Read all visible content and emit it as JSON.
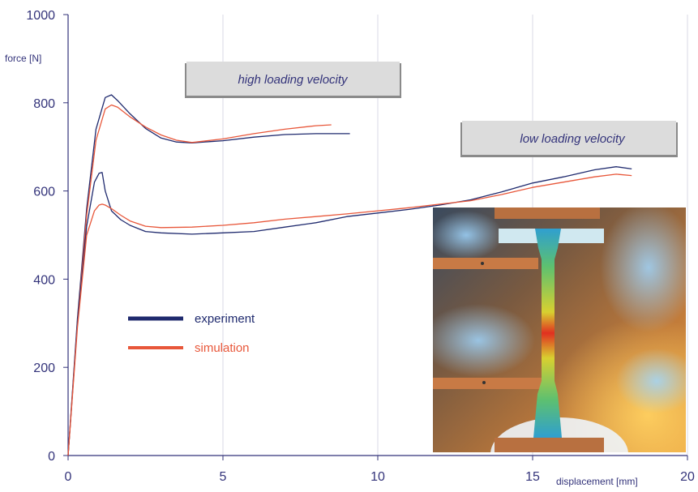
{
  "chart_data": {
    "type": "line",
    "xlabel": "displacement [mm]",
    "ylabel": "force [N]",
    "xlim": [
      0,
      20
    ],
    "ylim": [
      0,
      1000
    ],
    "x_ticks": [
      "0",
      "5",
      "10",
      "15",
      "20"
    ],
    "y_ticks": [
      "0",
      "200",
      "400",
      "600",
      "800",
      "1000"
    ],
    "grid": "vertical",
    "legend": {
      "placement": "center-left",
      "entries": [
        {
          "label": "experiment",
          "color": "#1f2a6e"
        },
        {
          "label": "simulation",
          "color": "#e8573a"
        }
      ]
    },
    "annotations": [
      {
        "text": "high loading velocity"
      },
      {
        "text": "low loading velocity"
      }
    ],
    "series": [
      {
        "name": "experiment",
        "group": "high loading velocity",
        "color": "#1f2a6e",
        "x": [
          0,
          0.3,
          0.6,
          0.9,
          1.2,
          1.4,
          1.6,
          2.0,
          2.5,
          3.0,
          3.5,
          4.0,
          5.0,
          6.0,
          7.0,
          8.0,
          9.1
        ],
        "y": [
          0,
          310,
          560,
          740,
          812,
          818,
          805,
          775,
          742,
          720,
          711,
          709,
          714,
          722,
          728,
          730,
          730
        ]
      },
      {
        "name": "simulation",
        "group": "high loading velocity",
        "color": "#e8573a",
        "x": [
          0,
          0.3,
          0.6,
          0.9,
          1.2,
          1.4,
          1.6,
          2.0,
          2.5,
          3.0,
          3.5,
          4.0,
          5.0,
          6.0,
          7.0,
          8.0,
          8.5
        ],
        "y": [
          0,
          300,
          545,
          715,
          786,
          795,
          790,
          768,
          745,
          727,
          715,
          710,
          718,
          730,
          740,
          748,
          750
        ]
      },
      {
        "name": "experiment",
        "group": "low loading velocity",
        "color": "#1f2a6e",
        "x": [
          0,
          0.3,
          0.6,
          0.85,
          1.0,
          1.1,
          1.2,
          1.4,
          1.7,
          2.0,
          2.5,
          3.0,
          4.0,
          5.0,
          6.0,
          7.0,
          8.0,
          9.0,
          10.0,
          11.0,
          12.0,
          13.0,
          14.0,
          15.0,
          16.0,
          17.0,
          17.7,
          18.2
        ],
        "y": [
          0,
          300,
          520,
          620,
          640,
          642,
          600,
          555,
          535,
          522,
          508,
          505,
          502,
          505,
          508,
          518,
          528,
          542,
          550,
          558,
          568,
          580,
          598,
          618,
          632,
          648,
          655,
          650
        ]
      },
      {
        "name": "simulation",
        "group": "low loading velocity",
        "color": "#e8573a",
        "x": [
          0,
          0.3,
          0.6,
          0.85,
          1.0,
          1.1,
          1.2,
          1.4,
          1.7,
          2.0,
          2.5,
          3.0,
          4.0,
          5.0,
          6.0,
          7.0,
          8.0,
          9.0,
          10.0,
          11.0,
          12.0,
          13.0,
          14.0,
          15.0,
          16.0,
          17.0,
          17.7,
          18.2
        ],
        "y": [
          0,
          290,
          500,
          555,
          568,
          570,
          568,
          560,
          545,
          532,
          520,
          517,
          518,
          522,
          528,
          536,
          542,
          548,
          555,
          562,
          570,
          578,
          592,
          608,
          620,
          632,
          638,
          635
        ]
      }
    ]
  },
  "photo": {
    "subject": "tensile-specimen-with-simulated-strain-contour"
  },
  "colors": {
    "axis": "#33337a",
    "grid": "#d8d8e4",
    "annotation_box": "#dcdcdc",
    "annotation_shadow": "#8a8a8a"
  }
}
